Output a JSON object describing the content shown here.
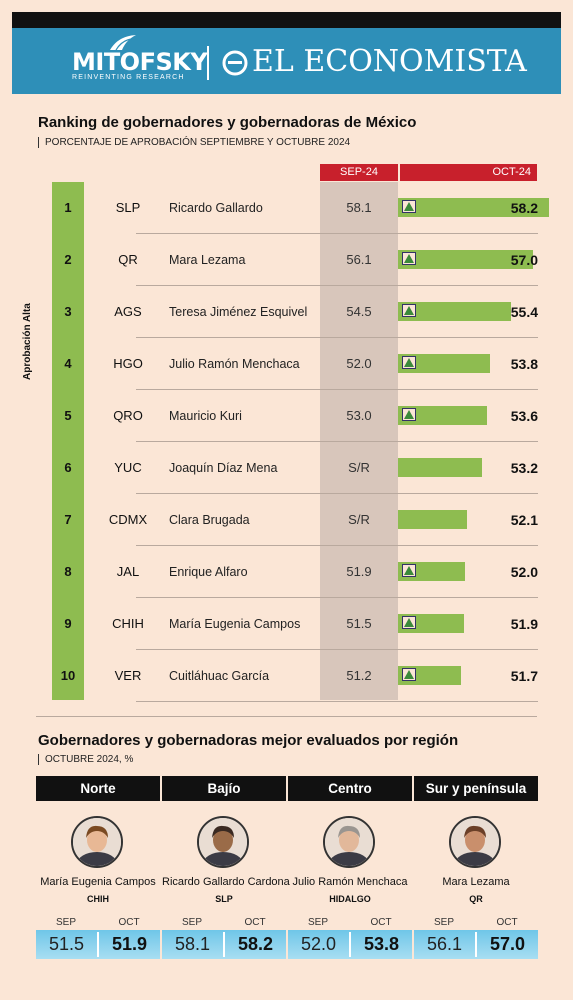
{
  "brand": {
    "mitofsky": "MITOFSKY",
    "mitofsky_tagline": "REINVENTING RESEARCH",
    "economista": "EL ECONOMISTA",
    "colors": {
      "header": "#2e8fb8",
      "accent_red": "#c8202c",
      "bar_green": "#8ebc50",
      "region_box": "#6fc6e8"
    }
  },
  "ranking": {
    "title": "Ranking de gobernadores y gobernadoras de México",
    "subtitle": "PORCENTAJE DE APROBACIÓN SEPTIEMBRE Y OCTUBRE 2024",
    "side_label": "Aprobación Alta",
    "col_sep": "SEP-24",
    "col_oct": "OCT-24"
  },
  "chart_data": {
    "type": "bar",
    "title": "Ranking de gobernadores y gobernadoras de México",
    "subtitle": "PORCENTAJE DE APROBACIÓN SEPTIEMBRE Y OCTUBRE 2024",
    "rows": [
      {
        "rank": "1",
        "state": "SLP",
        "name": "Ricardo Gallardo",
        "sep": "58.1",
        "oct": "58.2",
        "oct_value": 58.2,
        "trend": "up"
      },
      {
        "rank": "2",
        "state": "QR",
        "name": "Mara Lezama",
        "sep": "56.1",
        "oct": "57.0",
        "oct_value": 57.0,
        "trend": "up"
      },
      {
        "rank": "3",
        "state": "AGS",
        "name": "Teresa Jiménez Esquivel",
        "sep": "54.5",
        "oct": "55.4",
        "oct_value": 55.4,
        "trend": "up"
      },
      {
        "rank": "4",
        "state": "HGO",
        "name": "Julio Ramón Menchaca",
        "sep": "52.0",
        "oct": "53.8",
        "oct_value": 53.8,
        "trend": "up"
      },
      {
        "rank": "5",
        "state": "QRO",
        "name": "Mauricio Kuri",
        "sep": "53.0",
        "oct": "53.6",
        "oct_value": 53.6,
        "trend": "up"
      },
      {
        "rank": "6",
        "state": "YUC",
        "name": "Joaquín Díaz Mena",
        "sep": "S/R",
        "oct": "53.2",
        "oct_value": 53.2,
        "trend": "none"
      },
      {
        "rank": "7",
        "state": "CDMX",
        "name": "Clara Brugada",
        "sep": "S/R",
        "oct": "52.1",
        "oct_value": 52.1,
        "trend": "none"
      },
      {
        "rank": "8",
        "state": "JAL",
        "name": "Enrique Alfaro",
        "sep": "51.9",
        "oct": "52.0",
        "oct_value": 52.0,
        "trend": "up"
      },
      {
        "rank": "9",
        "state": "CHIH",
        "name": "María Eugenia Campos",
        "sep": "51.5",
        "oct": "51.9",
        "oct_value": 51.9,
        "trend": "up"
      },
      {
        "rank": "10",
        "state": "VER",
        "name": "Cuitláhuac García",
        "sep": "51.2",
        "oct": "51.7",
        "oct_value": 51.7,
        "trend": "up"
      }
    ]
  },
  "regions": {
    "title": "Gobernadores y gobernadoras mejor evaluados por región",
    "subtitle": "OCTUBRE 2024, %",
    "sep_label": "SEP",
    "oct_label": "OCT",
    "items": [
      {
        "region": "Norte",
        "name": "María Eugenia Campos",
        "state": "CHIH",
        "sep": "51.5",
        "oct": "51.9"
      },
      {
        "region": "Bajío",
        "name": "Ricardo Gallardo Cardona",
        "state": "SLP",
        "sep": "58.1",
        "oct": "58.2"
      },
      {
        "region": "Centro",
        "name": "Julio Ramón Menchaca",
        "state": "HIDALGO",
        "sep": "52.0",
        "oct": "53.8"
      },
      {
        "region": "Sur y península",
        "name": "Mara Lezama",
        "state": "QR",
        "sep": "56.1",
        "oct": "57.0"
      }
    ]
  }
}
